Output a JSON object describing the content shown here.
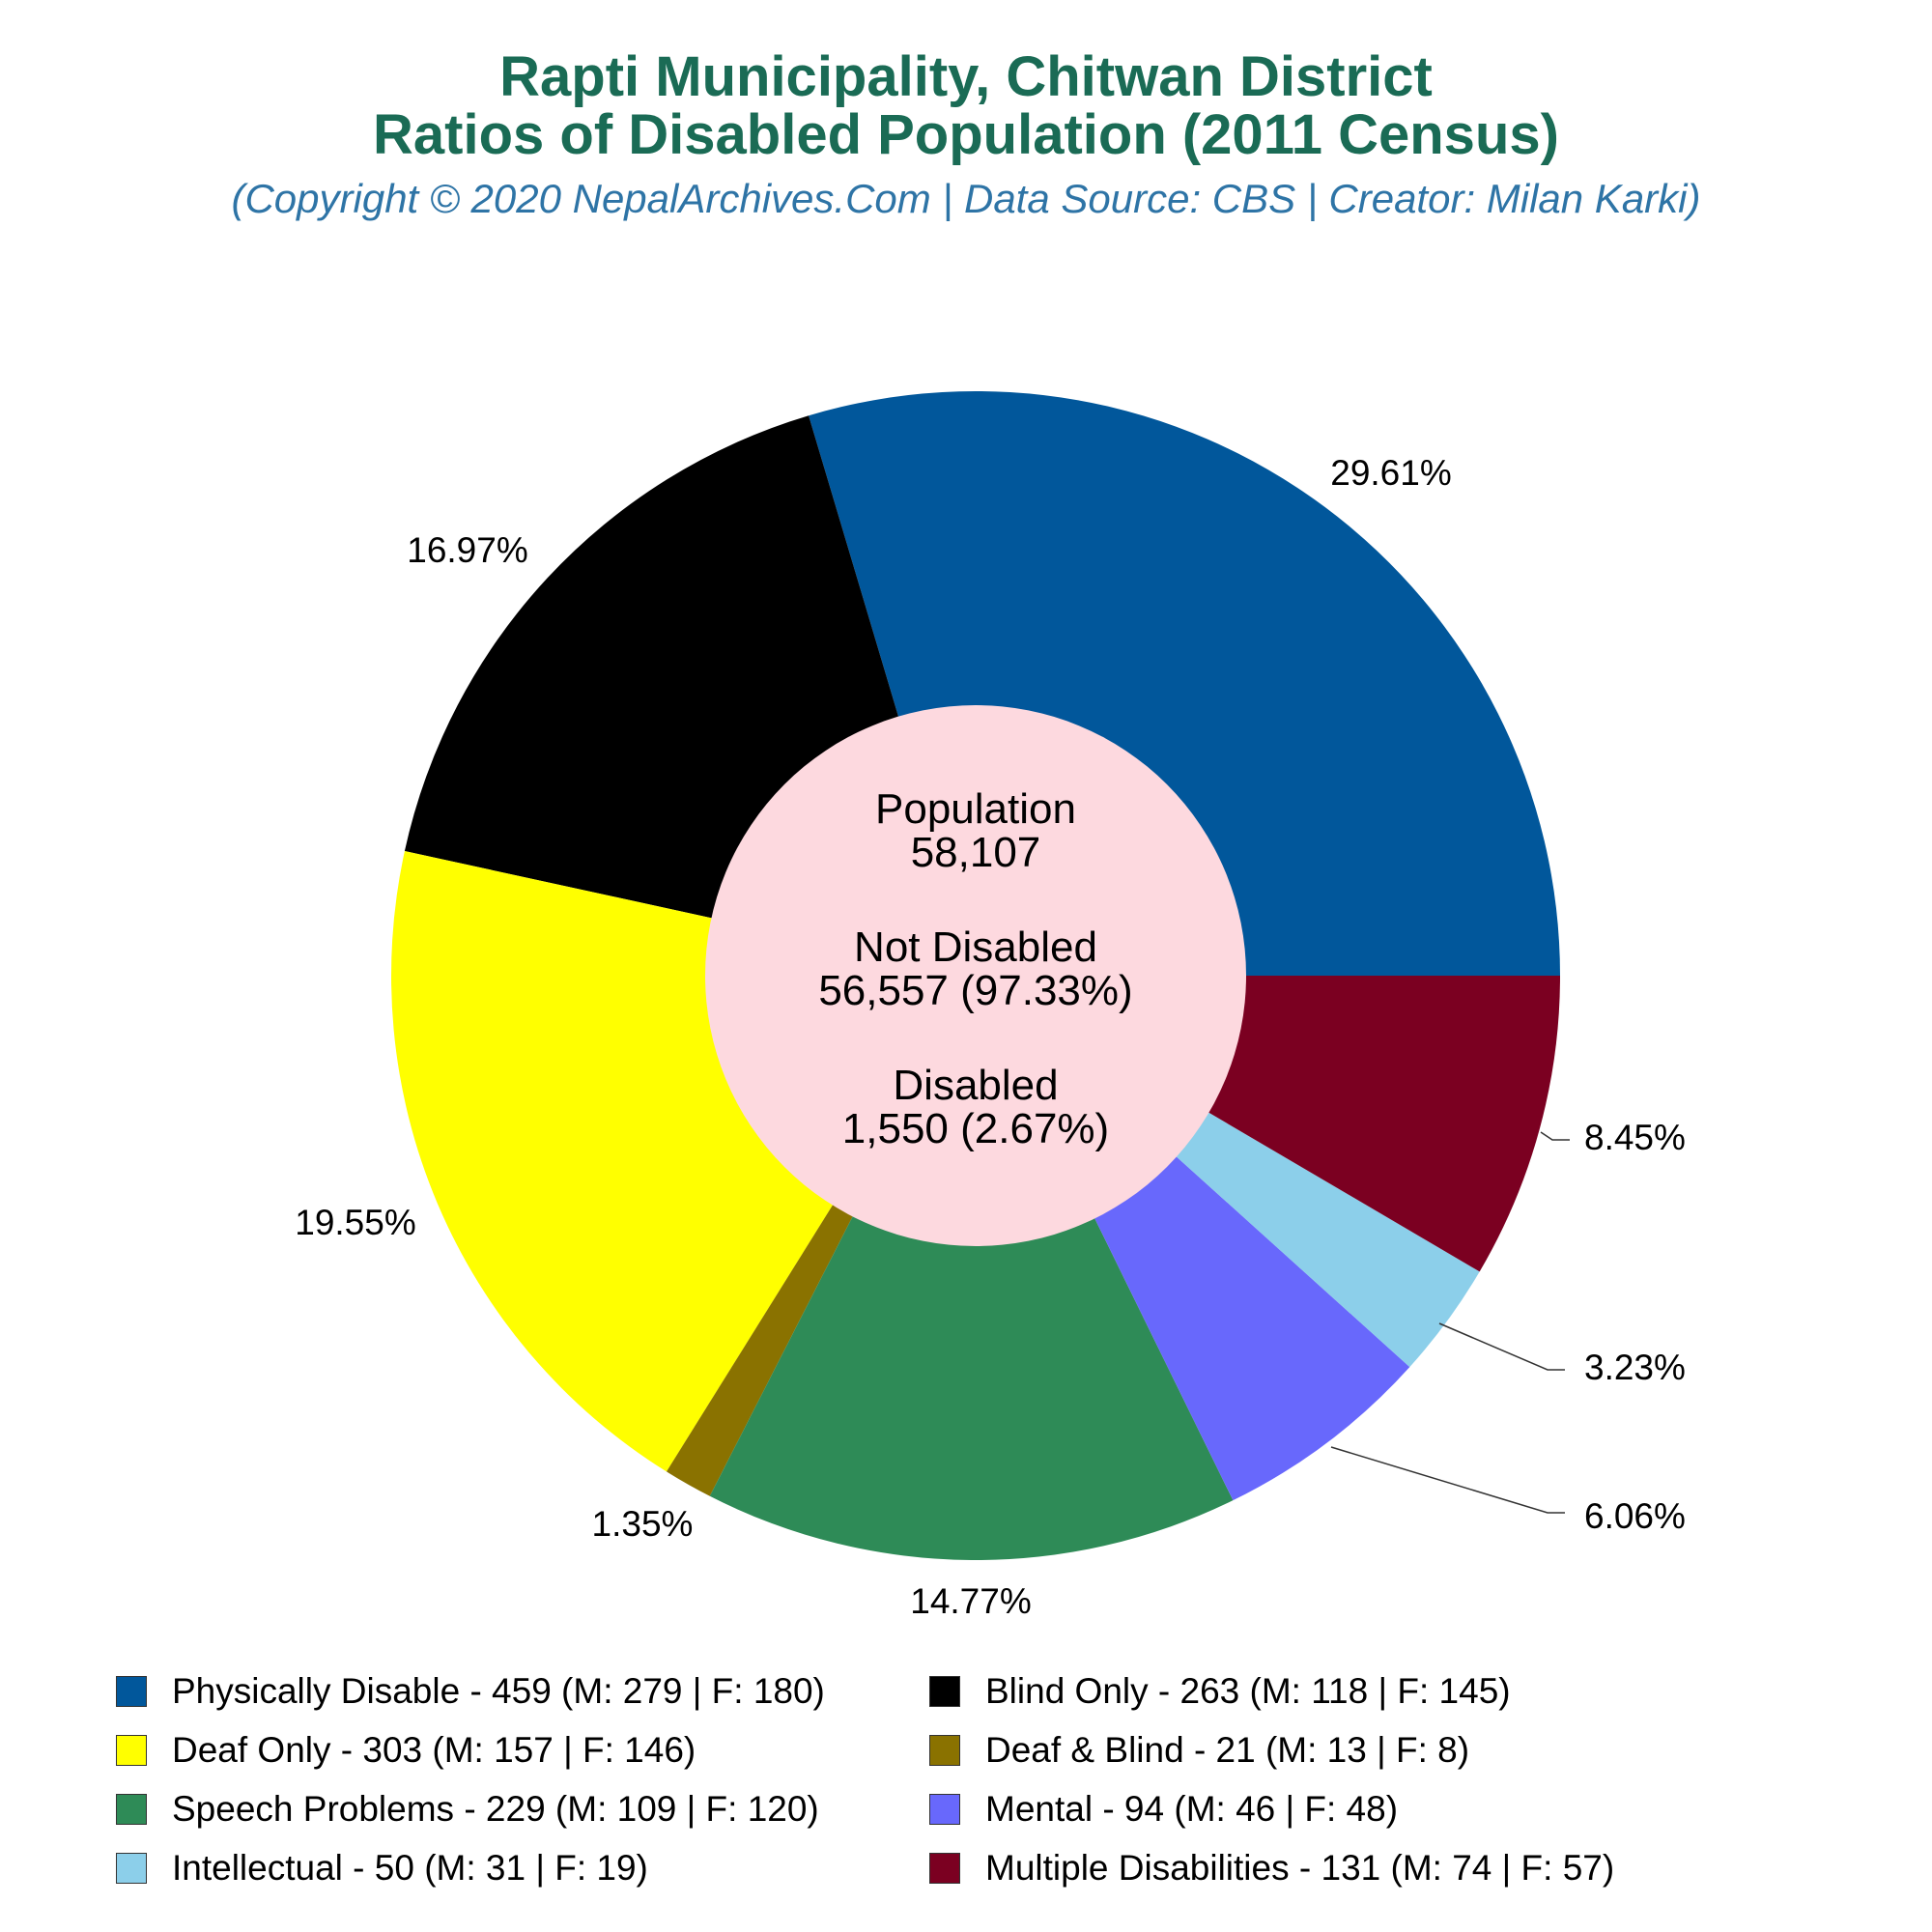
{
  "title_line1": "Rapti Municipality, Chitwan District",
  "title_line2": "Ratios of Disabled Population (2011 Census)",
  "subtitle": "(Copyright © 2020 NepalArchives.Com | Data Source: CBS | Creator: Milan Karki)",
  "center": {
    "population_label": "Population",
    "population_value": "58,107",
    "not_disabled_label": "Not Disabled",
    "not_disabled_value": "56,557 (97.33%)",
    "disabled_label": "Disabled",
    "disabled_value": "1,550 (2.67%)"
  },
  "chart_data": {
    "type": "pie",
    "subtype": "donut",
    "start_angle_deg": 0,
    "direction": "counterclockwise",
    "slices": [
      {
        "label": "Physically Disable - 459 (M: 279 | F: 180)",
        "value": 459,
        "percent_label": "29.61%",
        "color": "#01579b"
      },
      {
        "label": "Blind Only - 263 (M: 118 | F: 145)",
        "value": 263,
        "percent_label": "16.97%",
        "color": "#000000"
      },
      {
        "label": "Deaf Only - 303 (M: 157 | F: 146)",
        "value": 303,
        "percent_label": "19.55%",
        "color": "#ffff00"
      },
      {
        "label": "Deaf & Blind - 21 (M: 13 | F: 8)",
        "value": 21,
        "percent_label": "1.35%",
        "color": "#8a7200"
      },
      {
        "label": "Speech Problems - 229 (M: 109 | F: 120)",
        "value": 229,
        "percent_label": "14.77%",
        "color": "#2e8b57"
      },
      {
        "label": "Mental - 94 (M: 46 | F: 48)",
        "value": 94,
        "percent_label": "6.06%",
        "color": "#6868fc"
      },
      {
        "label": "Intellectual - 50 (M: 31 | F: 19)",
        "value": 50,
        "percent_label": "3.23%",
        "color": "#8ccfea"
      },
      {
        "label": "Multiple Disabilities - 131 (M: 74 | F: 57)",
        "value": 131,
        "percent_label": "8.45%",
        "color": "#7b0021"
      }
    ],
    "hole_color": "#fdd9df"
  }
}
